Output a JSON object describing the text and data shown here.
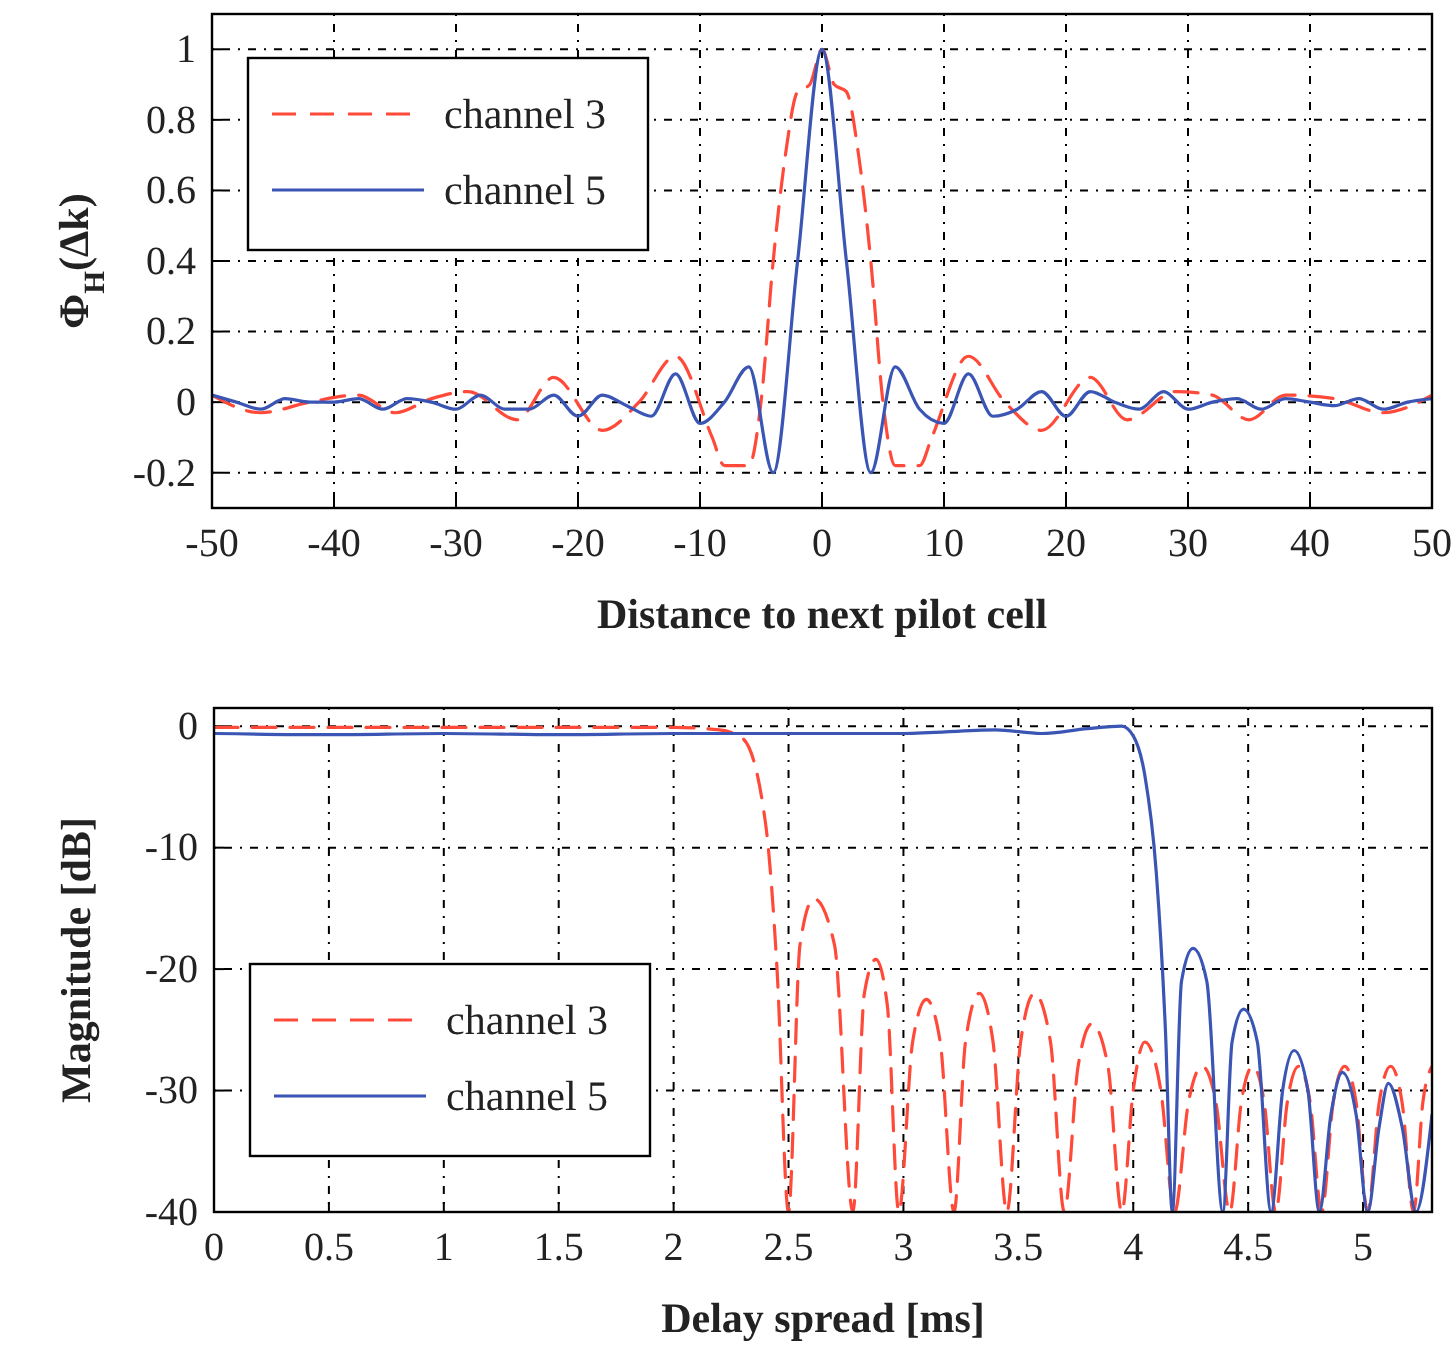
{
  "chart_data": [
    {
      "type": "line",
      "xlabel": "Distance to next pilot cell",
      "ylabel": "Φ$_{H}$(Δk)",
      "xlim": [
        -50,
        50
      ],
      "ylim": [
        -0.3,
        1.1
      ],
      "xticks": [
        -50,
        -40,
        -30,
        -20,
        -10,
        0,
        10,
        20,
        30,
        40,
        50
      ],
      "yticks": [
        -0.2,
        0,
        0.2,
        0.4,
        0.6,
        0.8,
        1
      ],
      "grid": true,
      "legend": "top left",
      "series": [
        {
          "name": "channel 3",
          "color": "#ff4a3a",
          "line_style": "dashed",
          "x": [
            -50,
            -46,
            -42,
            -38,
            -35,
            -32,
            -29,
            -25,
            -22,
            -18,
            -15,
            -12,
            -9,
            -8,
            -6,
            -5,
            -4,
            -3,
            -2,
            -1,
            0,
            1,
            2,
            3,
            4,
            5,
            6,
            8,
            9,
            12,
            15,
            18,
            22,
            25,
            29,
            32,
            35,
            38,
            42,
            46,
            50
          ],
          "values": [
            0.02,
            -0.03,
            0.0,
            0.02,
            -0.03,
            0.01,
            0.03,
            -0.05,
            0.07,
            -0.08,
            0.0,
            0.13,
            -0.1,
            -0.18,
            -0.18,
            0.0,
            0.4,
            0.7,
            0.88,
            0.9,
            1,
            0.9,
            0.88,
            0.7,
            0.4,
            0.0,
            -0.18,
            -0.18,
            -0.1,
            0.13,
            0.0,
            -0.08,
            0.07,
            -0.05,
            0.03,
            0.02,
            -0.05,
            0.02,
            0.01,
            -0.03,
            0.02
          ]
        },
        {
          "name": "channel 5",
          "color": "#3b55b5",
          "line_style": "solid",
          "x": [
            -50,
            -48,
            -46,
            -44,
            -42,
            -40,
            -38,
            -36,
            -34,
            -32,
            -30,
            -28,
            -26,
            -24,
            -22,
            -20,
            -18,
            -16,
            -14,
            -12,
            -10,
            -8,
            -6,
            -4,
            -2,
            0,
            2,
            4,
            6,
            8,
            10,
            12,
            14,
            16,
            18,
            20,
            22,
            24,
            26,
            28,
            30,
            32,
            34,
            36,
            38,
            40,
            42,
            44,
            46,
            48,
            50
          ],
          "values": [
            0.02,
            0.0,
            -0.02,
            0.01,
            0.0,
            0.0,
            0.01,
            -0.02,
            0.01,
            0.0,
            -0.02,
            0.02,
            -0.02,
            -0.02,
            0.02,
            -0.04,
            0.02,
            -0.01,
            -0.04,
            0.08,
            -0.06,
            0.0,
            0.1,
            -0.2,
            0.4,
            1,
            0.4,
            -0.2,
            0.1,
            -0.02,
            -0.06,
            0.08,
            -0.04,
            -0.02,
            0.03,
            -0.04,
            0.03,
            0.0,
            -0.02,
            0.03,
            -0.02,
            0.0,
            0.01,
            -0.02,
            0.01,
            0.0,
            -0.01,
            0.01,
            -0.02,
            0.0,
            0.01
          ]
        }
      ]
    },
    {
      "type": "line",
      "xlabel": "Delay spread [ms]",
      "ylabel": "Magnitude [dB]",
      "xlim": [
        0,
        5.3
      ],
      "ylim": [
        -40,
        1.5
      ],
      "xticks": [
        0,
        0.5,
        1,
        1.5,
        2,
        2.5,
        3,
        3.5,
        4,
        4.5,
        5
      ],
      "yticks": [
        -40,
        -30,
        -20,
        -10,
        0
      ],
      "grid": true,
      "legend": "bottom left",
      "series": [
        {
          "name": "channel 3",
          "color": "#ff4a3a",
          "line_style": "dashed",
          "x": [
            0,
            1,
            2,
            2.2,
            2.3,
            2.4,
            2.45,
            2.5,
            2.55,
            2.61,
            2.7,
            2.78,
            2.83,
            2.88,
            2.93,
            2.98,
            3.04,
            3.1,
            3.16,
            3.22,
            3.27,
            3.33,
            3.39,
            3.45,
            3.51,
            3.57,
            3.64,
            3.7,
            3.76,
            3.82,
            3.89,
            3.95,
            4.0,
            4.05,
            4.12,
            4.18,
            4.24,
            4.3,
            4.36,
            4.42,
            4.47,
            4.52,
            4.57,
            4.62,
            4.67,
            4.72,
            4.77,
            4.82,
            4.87,
            4.92,
            4.97,
            5.02,
            5.07,
            5.12,
            5.17,
            5.22,
            5.26,
            5.3
          ],
          "values": [
            -0.1,
            -0.1,
            -0.1,
            -0.3,
            -1,
            -8,
            -20,
            -40,
            -18,
            -14.2,
            -18,
            -40,
            -22,
            -19.2,
            -23,
            -40,
            -26,
            -22.5,
            -26,
            -40,
            -26,
            -22,
            -26,
            -40,
            -26,
            -22,
            -26,
            -40,
            -28,
            -24.5,
            -28,
            -40,
            -30,
            -26,
            -30,
            -40,
            -31,
            -28,
            -31,
            -40,
            -31,
            -28,
            -31,
            -40,
            -31,
            -28,
            -31,
            -40,
            -31,
            -28,
            -31,
            -40,
            -31,
            -28,
            -31,
            -40,
            -31,
            -28
          ]
        },
        {
          "name": "channel 5",
          "color": "#3b55b5",
          "line_style": "solid",
          "x": [
            0,
            0.5,
            1,
            1.5,
            2,
            2.5,
            3,
            3.4,
            3.6,
            3.8,
            3.95,
            4.0,
            4.05,
            4.1,
            4.14,
            4.17,
            4.21,
            4.26,
            4.32,
            4.39,
            4.43,
            4.48,
            4.54,
            4.6,
            4.65,
            4.7,
            4.76,
            4.81,
            4.86,
            4.91,
            4.97,
            5.02,
            5.07,
            5.11,
            5.17,
            5.23,
            5.3
          ],
          "values": [
            -0.6,
            -0.7,
            -0.6,
            -0.7,
            -0.6,
            -0.6,
            -0.6,
            -0.3,
            -0.6,
            -0.2,
            0,
            -0.8,
            -4,
            -12,
            -25,
            -40,
            -21,
            -18.3,
            -21,
            -40,
            -26,
            -23.3,
            -26,
            -40,
            -30,
            -26.7,
            -30,
            -40,
            -32,
            -28.5,
            -32,
            -40,
            -33,
            -29.4,
            -33,
            -40,
            -32
          ]
        }
      ]
    }
  ]
}
